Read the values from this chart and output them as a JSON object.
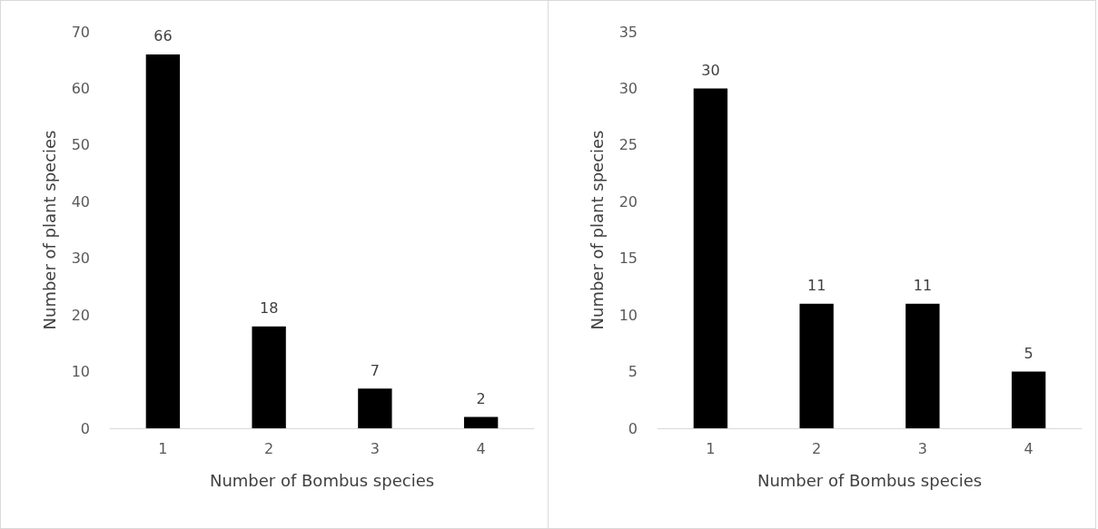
{
  "chart_data": [
    {
      "type": "bar",
      "categories": [
        "1",
        "2",
        "3",
        "4"
      ],
      "values": [
        66,
        18,
        7,
        2
      ],
      "color": "#000000",
      "xlabel": "Number of Bombus species",
      "ylabel": "Number of plant species",
      "ylim": [
        0,
        70
      ],
      "yticks": [
        0,
        10,
        20,
        30,
        40,
        50,
        60,
        70
      ],
      "data_labels": true,
      "grid": false
    },
    {
      "type": "bar",
      "categories": [
        "1",
        "2",
        "3",
        "4"
      ],
      "values": [
        30,
        11,
        11,
        5
      ],
      "color": "#000000",
      "xlabel": "Number of Bombus species",
      "ylabel": "Number of plant species",
      "ylim": [
        0,
        35
      ],
      "yticks": [
        0,
        5,
        10,
        15,
        20,
        25,
        30,
        35
      ],
      "data_labels": true,
      "grid": false
    }
  ]
}
